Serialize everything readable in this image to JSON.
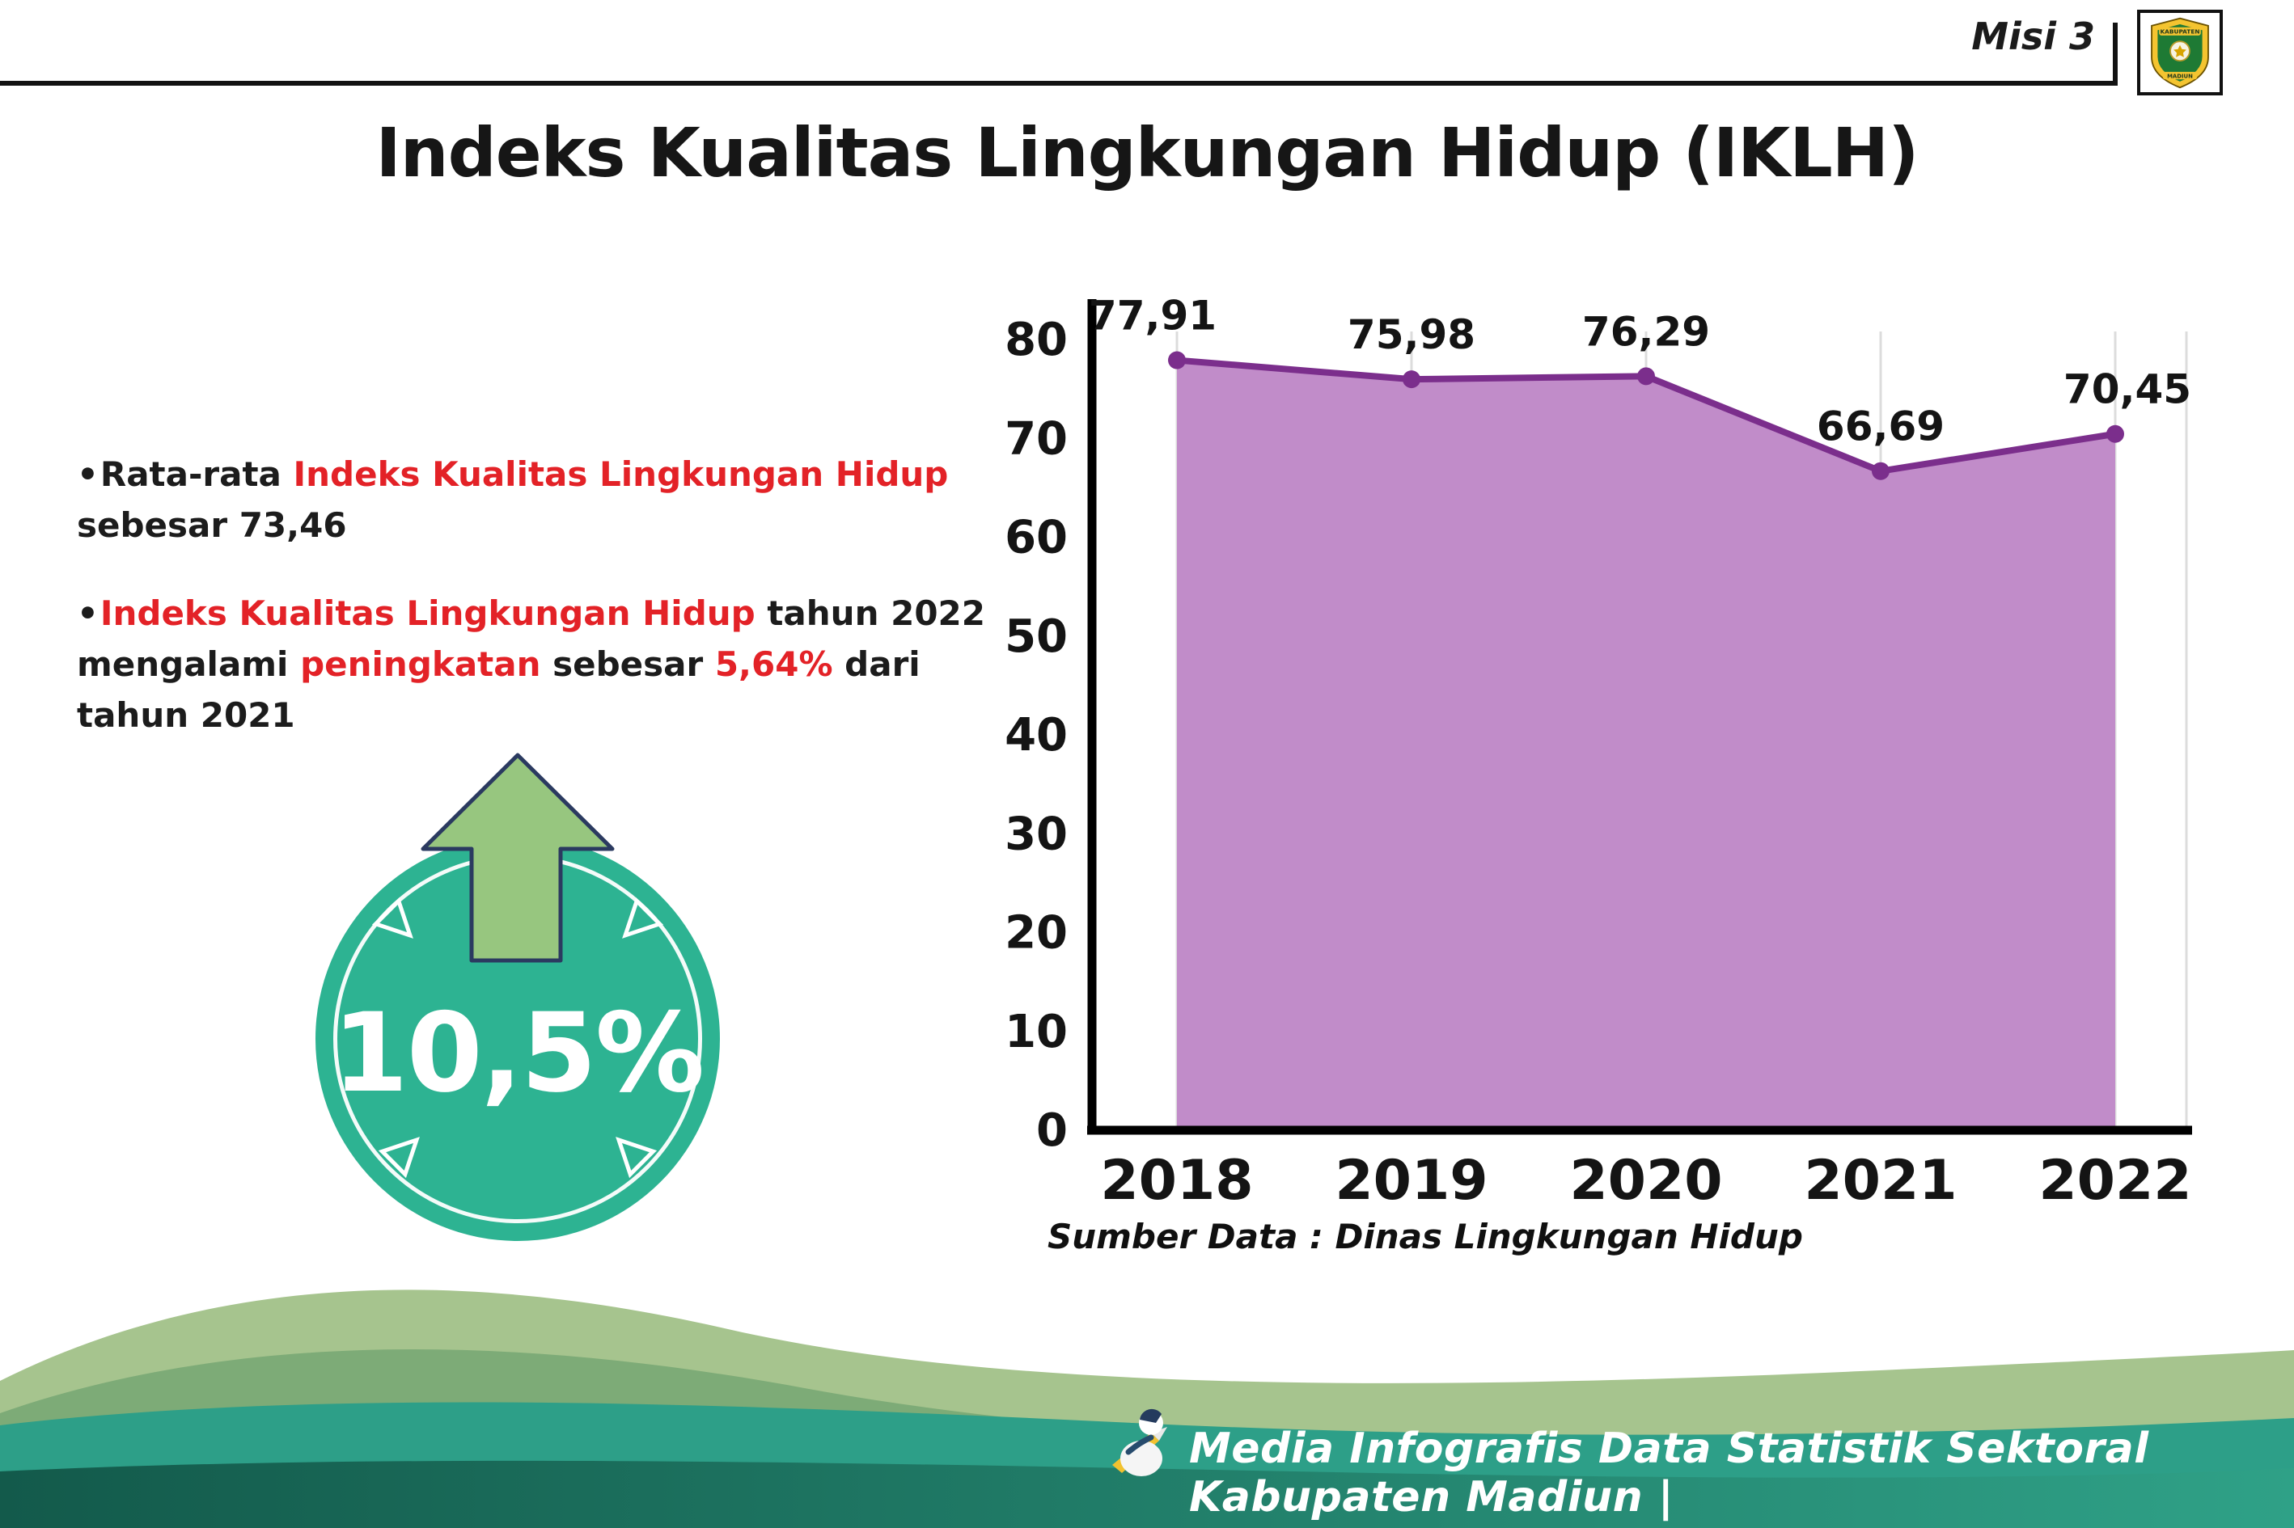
{
  "colors": {
    "red": "#e32227",
    "title": "#161616",
    "purple_line": "#7b2e8c",
    "purple_fill": "#c18cc9",
    "teal_badge": "#2db392",
    "arrow_green": "#97c67f",
    "footer_sage": "#a6c48e",
    "footer_shadow": "#7dab77",
    "footer_teal": "#2d9f88",
    "footer_dark": "#135a4b",
    "footer_text": "#ffffff"
  },
  "header": {
    "misi_label": "Misi 3",
    "title": "Indeks Kualitas Lingkungan Hidup (IKLH)",
    "logo_top": "KABUPATEN",
    "logo_bottom": "MADIUN"
  },
  "bullets": [
    {
      "segments": [
        {
          "text": "Rata-rata ",
          "red": false
        },
        {
          "text": "Indeks Kualitas Lingkungan Hidup",
          "red": true
        },
        {
          "text": " sebesar 73,46",
          "red": false
        }
      ]
    },
    {
      "segments": [
        {
          "text": "Indeks Kualitas Lingkungan Hidup",
          "red": true
        },
        {
          "text": " tahun 2022 mengalami ",
          "red": false
        },
        {
          "text": "peningkatan",
          "red": true
        },
        {
          "text": " sebesar ",
          "red": false
        },
        {
          "text": "5,64%",
          "red": true
        },
        {
          "text": " dari tahun 2021",
          "red": false
        }
      ]
    }
  ],
  "badge": {
    "value": "10,5%",
    "arrow_direction": "up"
  },
  "chart_data": {
    "type": "area",
    "title": "",
    "categories": [
      "2018",
      "2019",
      "2020",
      "2021",
      "2022"
    ],
    "values": [
      77.91,
      75.98,
      76.29,
      66.69,
      70.45
    ],
    "value_labels": [
      "77,91",
      "75,98",
      "76,29",
      "66,69",
      "70,45"
    ],
    "xlabel": "",
    "ylabel": "",
    "ylim": [
      0,
      80
    ],
    "yticks": [
      0,
      10,
      20,
      30,
      40,
      50,
      60,
      70,
      80
    ],
    "grid": "vertical",
    "legend": "none",
    "line_color": "#7b2e8c",
    "fill_color": "#c18cc9",
    "source": "Sumber Data : Dinas Lingkungan Hidup"
  },
  "footer": {
    "credit": "Media Infografis Data Statistik Sektoral Kabupaten Madiun |"
  }
}
